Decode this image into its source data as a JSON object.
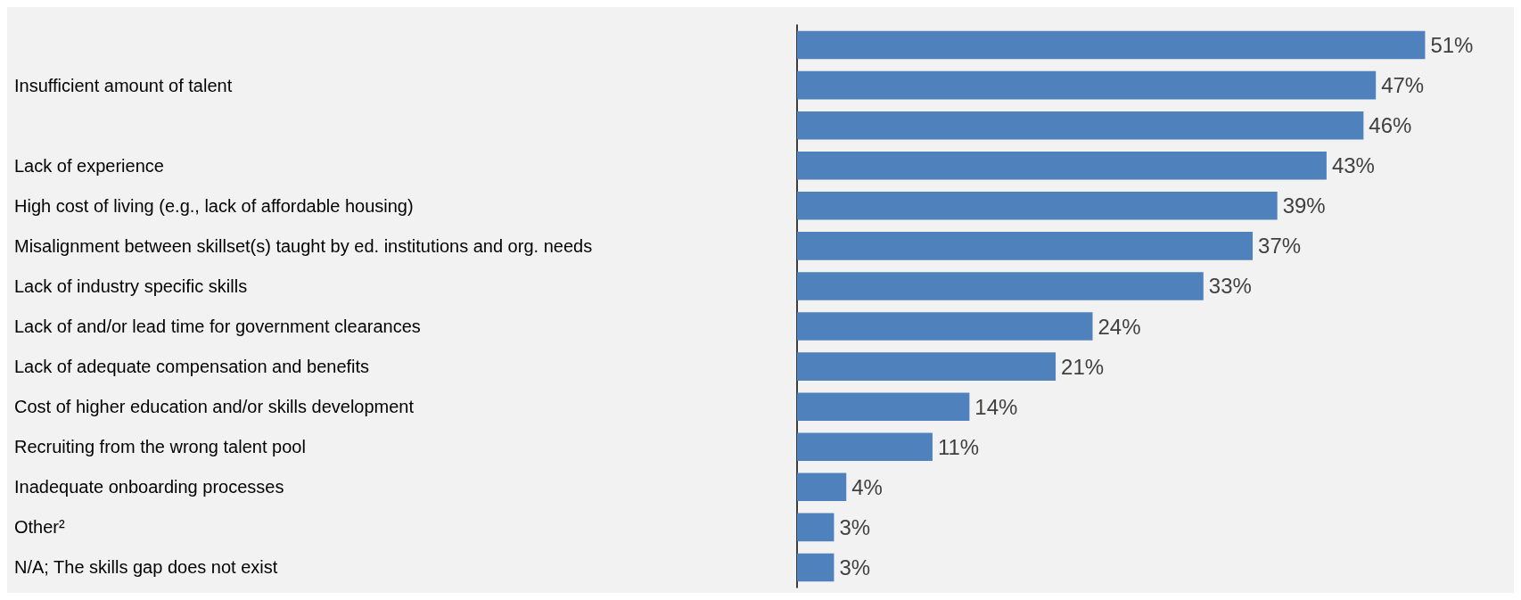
{
  "chart_data": {
    "type": "bar",
    "orientation": "horizontal",
    "color": "#4f81bd",
    "categories": [
      null,
      "Insufficient amount of talent",
      null,
      "Lack of experience",
      "High cost of living (e.g., lack of affordable housing)",
      "Misalignment between skillset(s) taught by ed. institutions and org. needs",
      "Lack of industry specific skills",
      "Lack of and/or lead time for government clearances",
      "Lack of adequate compensation and benefits",
      "Cost of higher education and/or skills development",
      "Recruiting from the wrong talent pool",
      "Inadequate onboarding processes",
      "Other²",
      "N/A; The skills gap does not exist"
    ],
    "values": [
      51,
      47,
      46,
      43,
      39,
      37,
      33,
      24,
      21,
      14,
      11,
      4,
      3,
      3
    ],
    "value_labels": [
      "51%",
      "47%",
      "46%",
      "43%",
      "39%",
      "37%",
      "33%",
      "24%",
      "21%",
      "14%",
      "11%",
      "4%",
      "3%",
      "3%"
    ]
  }
}
